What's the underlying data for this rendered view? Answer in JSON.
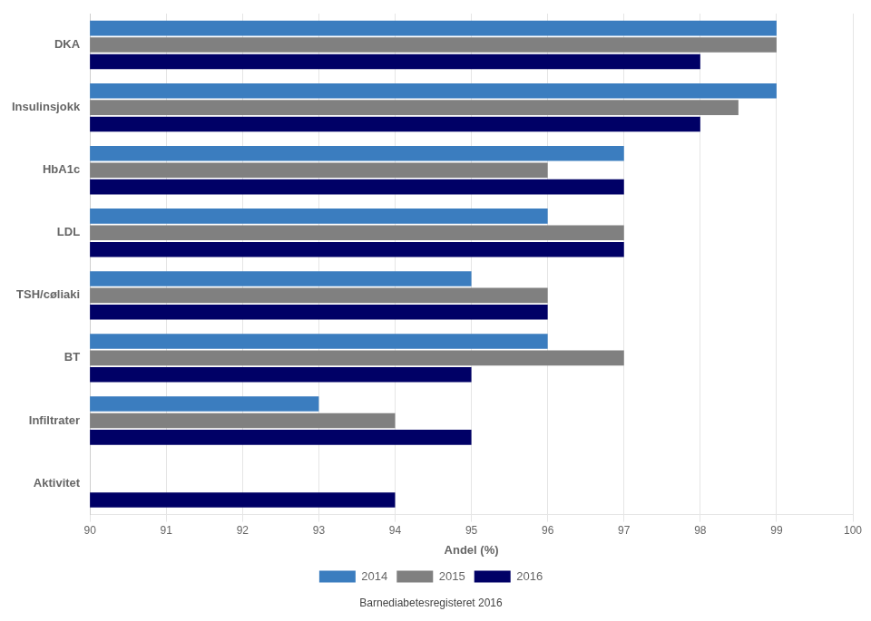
{
  "chart_data": {
    "type": "bar",
    "orientation": "horizontal",
    "categories": [
      "DKA",
      "Insulinsjokk",
      "HbA1c",
      "LDL",
      "TSH/cøliaki",
      "BT",
      "Infiltrater",
      "Aktivitet"
    ],
    "series": [
      {
        "name": "2014",
        "color": "#3B7DBF",
        "values": [
          99.0,
          99.0,
          97.0,
          96.0,
          95.0,
          96.0,
          93.0,
          null
        ]
      },
      {
        "name": "2015",
        "color": "#808080",
        "values": [
          99.0,
          98.5,
          96.0,
          97.0,
          96.0,
          97.0,
          94.0,
          null
        ]
      },
      {
        "name": "2016",
        "color": "#000066",
        "values": [
          98.0,
          98.0,
          97.0,
          97.0,
          96.0,
          95.0,
          95.0,
          94.0
        ]
      }
    ],
    "xlim": [
      90,
      100
    ],
    "xticks": [
      90,
      91,
      92,
      93,
      94,
      95,
      96,
      97,
      98,
      99,
      100
    ],
    "xlabel": "Andel (%)",
    "annotations": [
      "Barnediabetesregisteret 2016"
    ],
    "grid": "x",
    "legend": "bottom"
  }
}
